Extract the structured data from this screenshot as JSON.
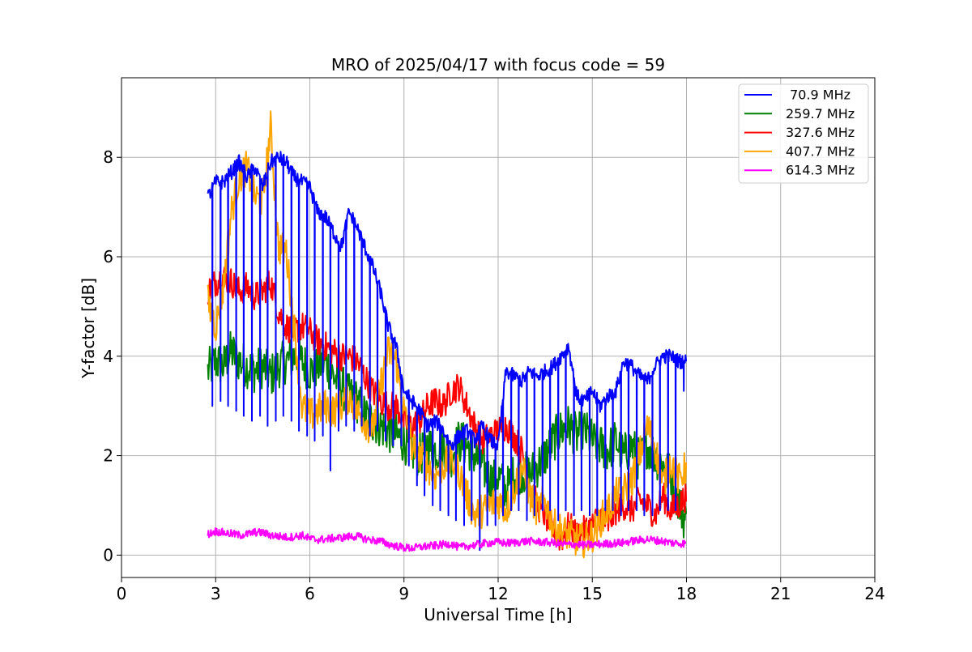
{
  "chart_data": {
    "type": "line",
    "title": "MRO of 2025/04/17 with focus code = 59",
    "xlabel": "Universal Time [h]",
    "ylabel": "Y-factor [dB]",
    "xlim": [
      0,
      24
    ],
    "ylim": [
      -0.45,
      9.6
    ],
    "xticks": [
      0,
      3,
      6,
      9,
      12,
      15,
      18,
      21,
      24
    ],
    "yticks": [
      0,
      2,
      4,
      6,
      8
    ],
    "grid": true,
    "legend_position": "top-right",
    "series": [
      {
        "name": " 70.9 MHz",
        "color": "#0000ff",
        "x": [
          2.75,
          3.0,
          3.25,
          3.5,
          3.75,
          4.0,
          4.25,
          4.5,
          4.75,
          5.0,
          5.25,
          5.5,
          5.75,
          6.0,
          6.25,
          6.5,
          6.75,
          7.0,
          7.25,
          7.5,
          7.75,
          8.0,
          8.25,
          8.5,
          8.75,
          9.0,
          9.25,
          9.5,
          9.75,
          10.0,
          10.25,
          10.5,
          10.75,
          11.0,
          11.25,
          11.5,
          11.75,
          12.0,
          12.25,
          12.5,
          12.75,
          13.0,
          13.25,
          13.5,
          13.75,
          14.0,
          14.25,
          14.5,
          14.75,
          15.0,
          15.25,
          15.5,
          15.75,
          16.0,
          16.25,
          16.5,
          16.75,
          17.0,
          17.25,
          17.5,
          17.75,
          18.0
        ],
        "y": [
          7.2,
          7.5,
          7.5,
          7.7,
          7.9,
          7.6,
          7.8,
          7.4,
          7.9,
          8.0,
          7.9,
          7.6,
          7.5,
          7.4,
          6.9,
          6.8,
          6.5,
          6.2,
          6.9,
          6.6,
          6.2,
          5.8,
          5.3,
          4.6,
          4.2,
          3.3,
          3.1,
          2.9,
          2.6,
          2.7,
          2.5,
          2.2,
          2.4,
          2.5,
          2.3,
          2.6,
          2.3,
          2.2,
          3.7,
          3.6,
          3.5,
          3.7,
          3.6,
          3.7,
          3.8,
          4.0,
          4.2,
          3.2,
          3.1,
          3.3,
          3.0,
          3.2,
          3.3,
          3.9,
          3.8,
          3.6,
          3.5,
          3.8,
          4.0,
          4.0,
          3.9,
          3.9
        ],
        "dips_x": [
          2.9,
          3.15,
          3.4,
          3.65,
          3.9,
          4.15,
          4.4,
          4.65,
          4.9,
          5.15,
          5.4,
          5.65,
          5.9,
          6.15,
          6.4,
          6.65,
          6.9,
          7.15,
          7.4,
          7.65,
          7.9,
          8.15,
          8.4,
          8.65,
          8.9,
          9.15,
          9.4,
          9.65,
          9.9,
          10.15,
          10.4,
          10.65,
          10.9,
          11.15,
          11.4,
          11.65,
          11.9,
          12.15,
          12.4,
          12.65,
          12.9,
          13.15,
          13.4,
          13.65,
          13.9,
          14.15,
          14.4,
          14.65,
          14.9,
          15.15,
          15.4,
          15.65,
          15.9,
          16.15,
          16.4,
          16.65,
          16.9,
          17.15,
          17.4,
          17.65,
          17.9
        ],
        "dips_y": [
          3.0,
          3.1,
          3.0,
          2.9,
          2.8,
          2.7,
          2.8,
          2.6,
          2.7,
          2.8,
          2.7,
          2.5,
          2.4,
          2.3,
          2.4,
          1.7,
          2.5,
          2.6,
          2.5,
          2.6,
          2.4,
          2.5,
          2.3,
          2.2,
          2.2,
          1.8,
          1.4,
          1.2,
          1.0,
          0.9,
          0.8,
          0.7,
          0.6,
          0.7,
          0.1,
          0.6,
          0.6,
          0.8,
          0.9,
          0.9,
          0.7,
          0.8,
          0.9,
          0.9,
          0.7,
          0.9,
          0.8,
          0.9,
          0.8,
          0.8,
          0.9,
          0.9,
          0.8,
          0.9,
          0.9,
          0.8,
          0.8,
          0.9,
          0.9,
          0.9,
          3.3
        ]
      },
      {
        "name": "259.7 MHz",
        "color": "#008000",
        "x": [
          2.75,
          3.0,
          3.25,
          3.5,
          3.75,
          4.0,
          4.25,
          4.5,
          4.75,
          5.0,
          5.25,
          5.5,
          5.75,
          6.0,
          6.25,
          6.5,
          6.75,
          7.0,
          7.25,
          7.5,
          7.75,
          8.0,
          8.25,
          8.5,
          8.75,
          9.0,
          9.25,
          9.5,
          9.75,
          10.0,
          10.25,
          10.5,
          10.75,
          11.0,
          11.25,
          11.5,
          11.75,
          12.0,
          12.25,
          12.5,
          12.75,
          13.0,
          13.25,
          13.5,
          13.75,
          14.0,
          14.25,
          14.5,
          14.75,
          15.0,
          15.25,
          15.5,
          15.75,
          16.0,
          16.25,
          16.5,
          16.75,
          17.0,
          17.25,
          17.5,
          17.75,
          18.0
        ],
        "y": [
          3.7,
          3.9,
          3.8,
          4.1,
          3.9,
          3.8,
          3.7,
          3.8,
          3.6,
          3.8,
          3.9,
          4.0,
          3.9,
          3.7,
          3.8,
          3.9,
          3.6,
          3.4,
          3.2,
          3.1,
          2.8,
          2.7,
          2.6,
          2.5,
          2.4,
          2.3,
          2.1,
          2.0,
          2.2,
          2.1,
          2.2,
          2.0,
          2.3,
          2.2,
          2.0,
          1.8,
          1.5,
          1.6,
          1.3,
          1.6,
          1.7,
          1.6,
          1.8,
          2.0,
          2.3,
          2.5,
          2.6,
          2.4,
          2.5,
          2.3,
          2.2,
          2.1,
          2.3,
          2.0,
          2.2,
          1.9,
          2.2,
          2.0,
          1.8,
          1.6,
          1.1,
          0.6
        ],
        "band": 0.45
      },
      {
        "name": "327.6 MHz",
        "color": "#ff0000",
        "x": [
          2.75,
          3.0,
          3.25,
          3.5,
          3.75,
          4.0,
          4.25,
          4.5,
          4.75,
          5.0,
          5.25,
          5.5,
          5.75,
          6.0,
          6.25,
          6.5,
          6.75,
          7.0,
          7.25,
          7.5,
          7.75,
          8.0,
          8.25,
          8.5,
          8.75,
          9.0,
          9.25,
          9.5,
          9.75,
          10.0,
          10.25,
          10.5,
          10.75,
          11.0,
          11.25,
          11.5,
          11.75,
          12.0,
          12.25,
          12.5,
          12.75,
          13.0,
          13.25,
          13.5,
          13.75,
          14.0,
          14.25,
          14.5,
          14.75,
          15.0,
          15.25,
          15.5,
          15.75,
          16.0,
          16.25,
          16.5,
          16.75,
          17.0,
          17.25,
          17.5,
          17.75,
          18.0
        ],
        "y": [
          5.3,
          5.5,
          5.6,
          5.5,
          5.3,
          5.4,
          5.2,
          5.3,
          5.5,
          4.9,
          4.6,
          4.5,
          4.6,
          4.5,
          4.3,
          4.2,
          4.1,
          4.0,
          4.0,
          3.9,
          3.6,
          3.3,
          3.1,
          3.0,
          3.0,
          2.7,
          2.6,
          2.7,
          3.0,
          3.1,
          3.0,
          3.3,
          3.4,
          3.0,
          2.6,
          2.3,
          2.4,
          2.5,
          2.6,
          2.4,
          2.1,
          1.4,
          1.0,
          0.8,
          0.5,
          0.3,
          0.6,
          0.4,
          0.5,
          0.6,
          0.8,
          0.6,
          0.9,
          1.0,
          0.9,
          1.1,
          1.0,
          0.8,
          1.2,
          0.9,
          1.0,
          1.2
        ],
        "band": 0.3
      },
      {
        "name": "407.7 MHz",
        "color": "#ffa500",
        "x": [
          2.75,
          3.0,
          3.25,
          3.5,
          3.75,
          4.0,
          4.25,
          4.5,
          4.75,
          5.0,
          5.25,
          5.5,
          5.75,
          6.0,
          6.25,
          6.5,
          6.75,
          7.0,
          7.25,
          7.5,
          7.75,
          8.0,
          8.25,
          8.5,
          8.75,
          9.0,
          9.25,
          9.5,
          9.75,
          10.0,
          10.25,
          10.5,
          10.75,
          11.0,
          11.25,
          11.5,
          11.75,
          12.0,
          12.25,
          12.5,
          12.75,
          13.0,
          13.25,
          13.5,
          13.75,
          14.0,
          14.25,
          14.5,
          14.75,
          15.0,
          15.25,
          15.5,
          15.75,
          16.0,
          16.25,
          16.5,
          16.75,
          17.0,
          17.25,
          17.5,
          17.75,
          18.0
        ],
        "y": [
          5.1,
          4.6,
          5.4,
          6.9,
          7.6,
          7.8,
          7.2,
          7.1,
          8.6,
          6.2,
          6.1,
          4.6,
          3.0,
          2.8,
          2.9,
          3.0,
          2.9,
          3.0,
          3.2,
          2.9,
          2.7,
          2.5,
          3.4,
          4.1,
          3.9,
          2.9,
          2.2,
          2.0,
          1.8,
          1.6,
          1.8,
          1.9,
          1.7,
          1.2,
          0.8,
          0.9,
          1.0,
          1.1,
          0.9,
          1.3,
          1.8,
          1.2,
          0.9,
          1.1,
          0.6,
          0.5,
          0.4,
          0.3,
          0.3,
          0.4,
          0.7,
          0.9,
          1.2,
          1.3,
          1.5,
          2.0,
          2.6,
          2.2,
          1.4,
          1.9,
          1.5,
          1.8
        ],
        "band": 0.35
      },
      {
        "name": "614.3 MHz",
        "color": "#ff00ff",
        "x": [
          2.75,
          3.0,
          3.25,
          3.5,
          3.75,
          4.0,
          4.25,
          4.5,
          4.75,
          5.0,
          5.25,
          5.5,
          5.75,
          6.0,
          6.25,
          6.5,
          6.75,
          7.0,
          7.25,
          7.5,
          7.75,
          8.0,
          8.25,
          8.5,
          8.75,
          9.0,
          9.25,
          9.5,
          9.75,
          10.0,
          10.25,
          10.5,
          10.75,
          11.0,
          11.25,
          11.5,
          11.75,
          12.0,
          12.25,
          12.5,
          12.75,
          13.0,
          13.25,
          13.5,
          13.75,
          14.0,
          14.25,
          14.5,
          14.75,
          15.0,
          15.25,
          15.5,
          15.75,
          16.0,
          16.25,
          16.5,
          16.75,
          17.0,
          17.25,
          17.5,
          17.75,
          18.0
        ],
        "y": [
          0.42,
          0.48,
          0.45,
          0.43,
          0.4,
          0.42,
          0.46,
          0.45,
          0.4,
          0.38,
          0.36,
          0.37,
          0.4,
          0.33,
          0.31,
          0.32,
          0.34,
          0.35,
          0.37,
          0.38,
          0.33,
          0.3,
          0.28,
          0.22,
          0.18,
          0.15,
          0.14,
          0.16,
          0.18,
          0.19,
          0.21,
          0.23,
          0.15,
          0.18,
          0.2,
          0.23,
          0.25,
          0.26,
          0.24,
          0.25,
          0.27,
          0.28,
          0.27,
          0.26,
          0.25,
          0.22,
          0.21,
          0.22,
          0.2,
          0.21,
          0.22,
          0.23,
          0.24,
          0.25,
          0.28,
          0.3,
          0.32,
          0.3,
          0.28,
          0.25,
          0.24,
          0.23
        ],
        "band": 0.08
      }
    ]
  }
}
